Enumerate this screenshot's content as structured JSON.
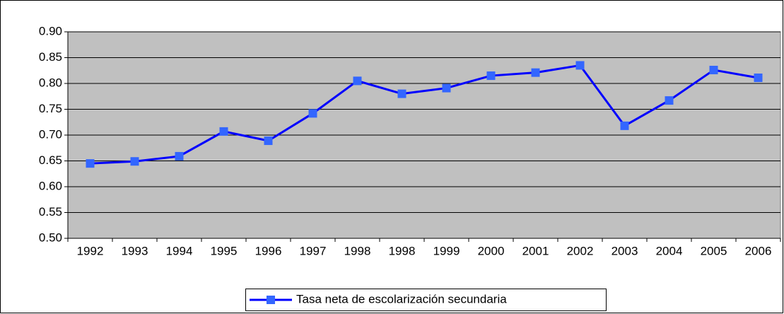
{
  "chart_data": {
    "type": "line",
    "categories": [
      "1992",
      "1993",
      "1994",
      "1995",
      "1996",
      "1997",
      "1998",
      "1998",
      "1999",
      "2000",
      "2001",
      "2002",
      "2003",
      "2004",
      "2005",
      "2006"
    ],
    "series": [
      {
        "name": "Tasa neta de escolarización secundaria",
        "color": "#0000ff",
        "marker_color": "#3366ff",
        "values": [
          0.645,
          0.649,
          0.659,
          0.707,
          0.689,
          0.742,
          0.805,
          0.78,
          0.791,
          0.815,
          0.821,
          0.835,
          0.718,
          0.767,
          0.826,
          0.811
        ]
      }
    ],
    "ylim": [
      0.5,
      0.9
    ],
    "yticks": [
      {
        "value": 0.5,
        "label": "0.50"
      },
      0.55,
      {
        "value": 0.6,
        "label": "0.60"
      },
      0.65,
      {
        "value": 0.7,
        "label": "0.70"
      },
      0.75,
      {
        "value": 0.8,
        "label": "0.80"
      },
      0.85,
      {
        "value": 0.9,
        "label": "0.90"
      }
    ],
    "grid": true,
    "plot_background": "#c0c0c0",
    "legend": "bottom"
  }
}
